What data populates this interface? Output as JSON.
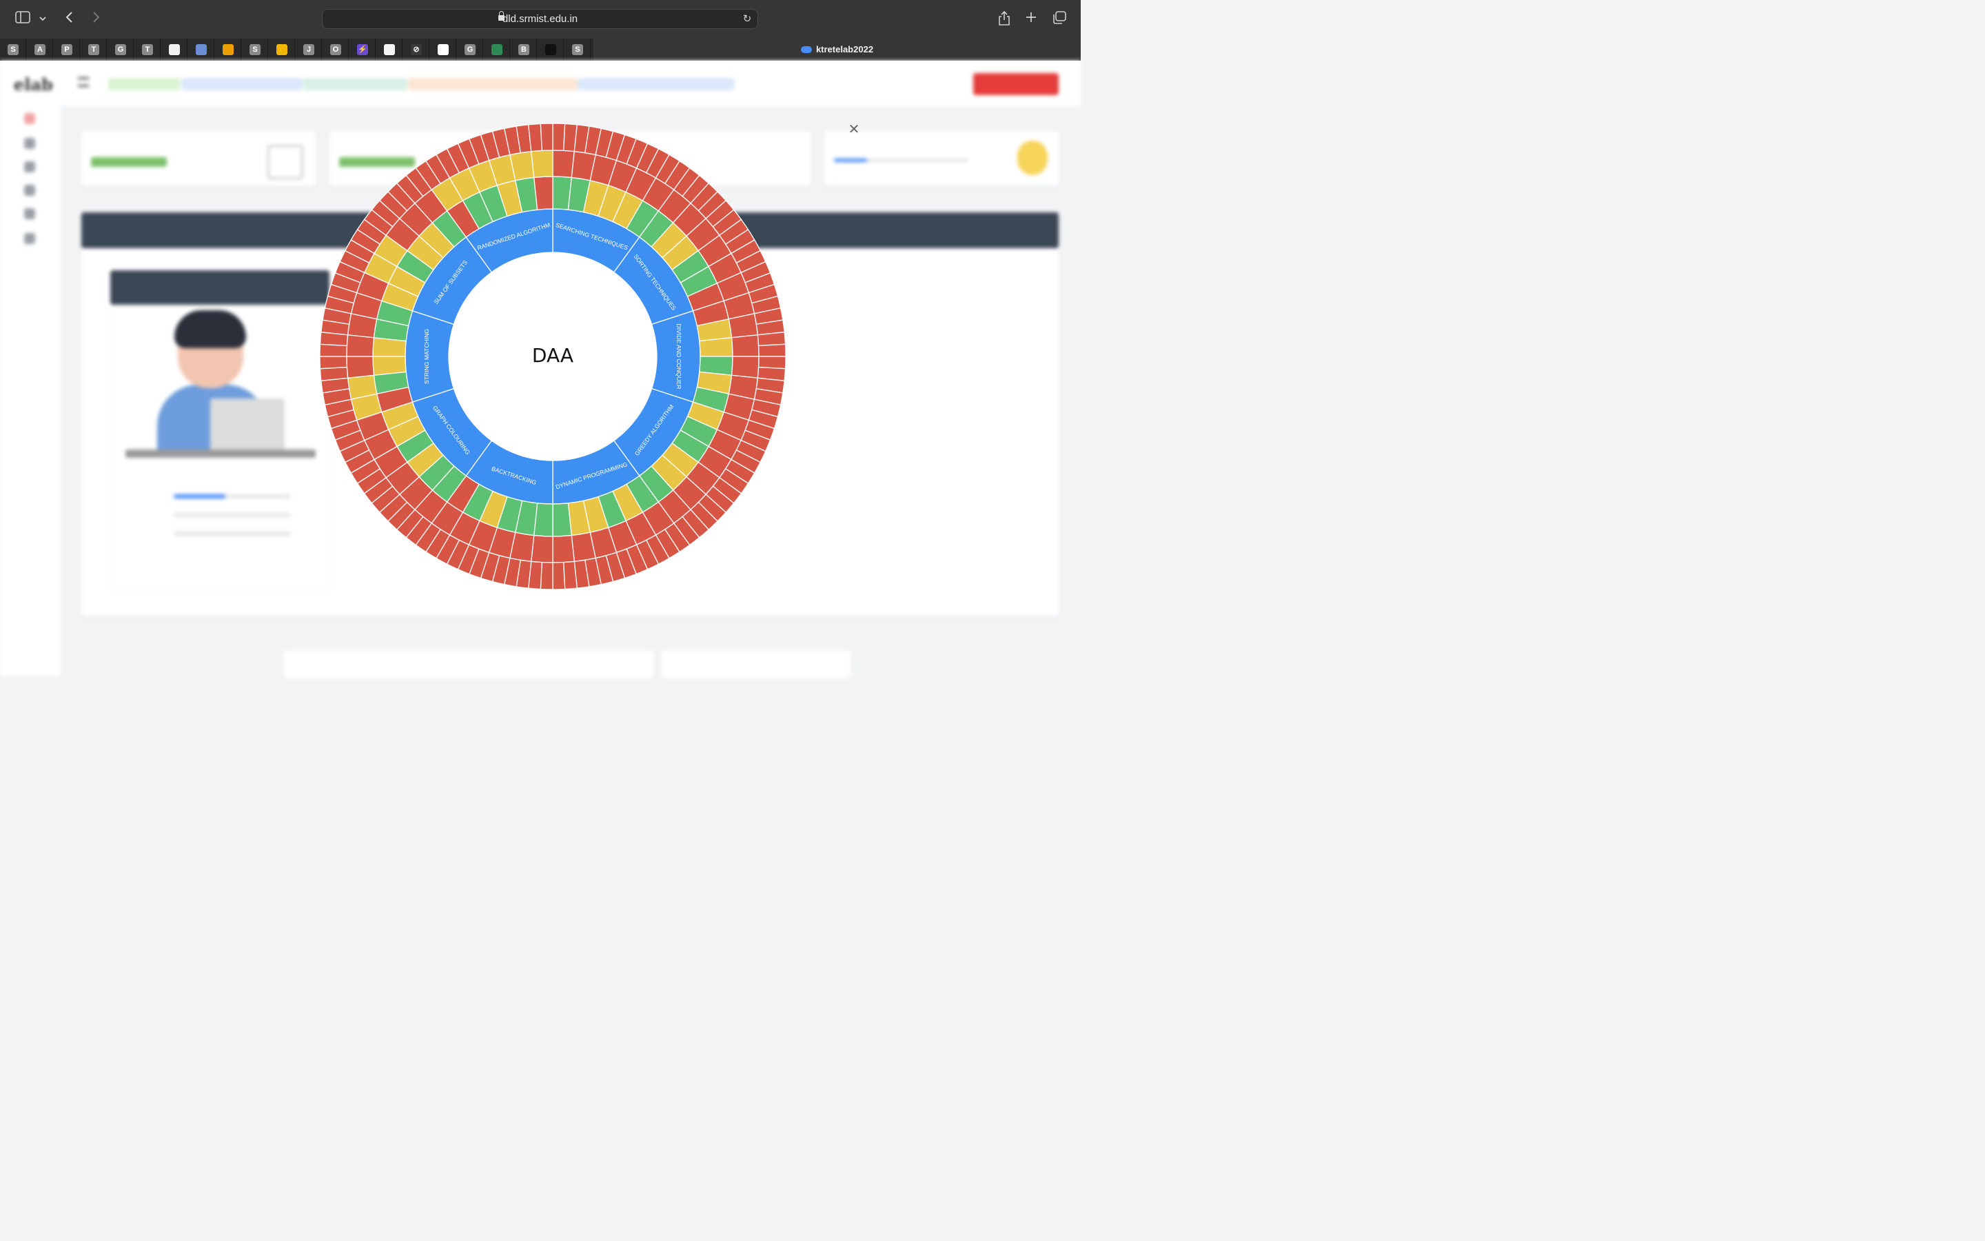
{
  "browser": {
    "url": "dld.srmist.edu.in",
    "active_tab": "ktretelab2022",
    "buttons": {
      "sidebar": "sidebar-toggle-icon",
      "dropdown": "chevron-down-icon",
      "back": "back-arrow-icon",
      "forward": "forward-arrow-icon",
      "share": "share-icon",
      "new_tab": "plus-icon",
      "tab_overview": "tabs-overview-icon",
      "reload": "reload-icon"
    },
    "favorites": [
      {
        "letter": "S",
        "color": "#8a8a8a"
      },
      {
        "letter": "A",
        "color": "#8a8a8a"
      },
      {
        "letter": "P",
        "color": "#8a8a8a"
      },
      {
        "letter": "T",
        "color": "#8a8a8a"
      },
      {
        "letter": "G",
        "color": "#8a8a8a"
      },
      {
        "letter": "T",
        "color": "#8a8a8a"
      },
      {
        "letter": "",
        "color": "#f2f2f2"
      },
      {
        "letter": "",
        "color": "#6b8fd6"
      },
      {
        "letter": "",
        "color": "#e9a000"
      },
      {
        "letter": "S",
        "color": "#8a8a8a"
      },
      {
        "letter": "",
        "color": "#f2b600"
      },
      {
        "letter": "J",
        "color": "#8a8a8a"
      },
      {
        "letter": "O",
        "color": "#8a8a8a"
      },
      {
        "letter": "⚡",
        "color": "#6a4bd1"
      },
      {
        "letter": "",
        "color": "#f5f5f5"
      },
      {
        "letter": "⊘",
        "color": "#3a3a3a"
      },
      {
        "letter": "M",
        "color": "#ffffff"
      },
      {
        "letter": "G",
        "color": "#8a8a8a"
      },
      {
        "letter": "",
        "color": "#2e8b57"
      },
      {
        "letter": "B",
        "color": "#8a8a8a"
      },
      {
        "letter": "",
        "color": "#111111"
      },
      {
        "letter": "S",
        "color": "#8a8a8a"
      }
    ]
  },
  "page": {
    "logo": "elab",
    "pills": [
      {
        "color": "#d9f2d0",
        "text_color": "#5aa04a"
      },
      {
        "color": "#dbe8fb",
        "text_color": "#4a7ed0"
      },
      {
        "color": "#d8f0e6",
        "text_color": "#3a9a6a"
      },
      {
        "color": "#fbe6d3",
        "text_color": "#d08a3a"
      },
      {
        "color": "#dbe8fb",
        "text_color": "#4a7ed0"
      }
    ],
    "logout_color": "#e43d3b"
  },
  "sunburst": {
    "center_label": "DAA",
    "colors": {
      "green": "#5cc172",
      "yellow": "#e9c546",
      "red": "#d65544",
      "category": "#3d8ff2",
      "divider": "#ffffff"
    },
    "categories": [
      {
        "name": "SEARCHING TECHNIQUES",
        "ring1": "GGYYYG",
        "ring2": "RRRRRR"
      },
      {
        "name": "SORTING TECHNIQUES",
        "ring1": "GYYGGR",
        "ring2": "RRRRRR"
      },
      {
        "name": "DIVIDE AND CONQUER",
        "ring1": "RYYGYG",
        "ring2": "RRRRRR"
      },
      {
        "name": "GREEDY ALGORITHM",
        "ring1": "YGGYYG",
        "ring2": "RRRRRR"
      },
      {
        "name": "DYNAMIC PROGRAMMING",
        "ring1": "GYGYYG",
        "ring2": "RRRRRR"
      },
      {
        "name": "BACKTRACKING",
        "ring1": "GGGYGR",
        "ring2": "RRRRRR"
      },
      {
        "name": "GRAPH COLOURING",
        "ring1": "GGYGYY",
        "ring2": "RRRRRR"
      },
      {
        "name": "STRING MATCHING",
        "ring1": "RGYYGG",
        "ring2": "YYRRRR"
      },
      {
        "name": "SUM OF SUBSETS",
        "ring1": "YYGYYG",
        "ring2": "RYYRRR"
      },
      {
        "name": "RANDOMIZED ALGORITHM",
        "ring1": "RGGYGR",
        "ring2": "YYYYYY"
      }
    ]
  }
}
